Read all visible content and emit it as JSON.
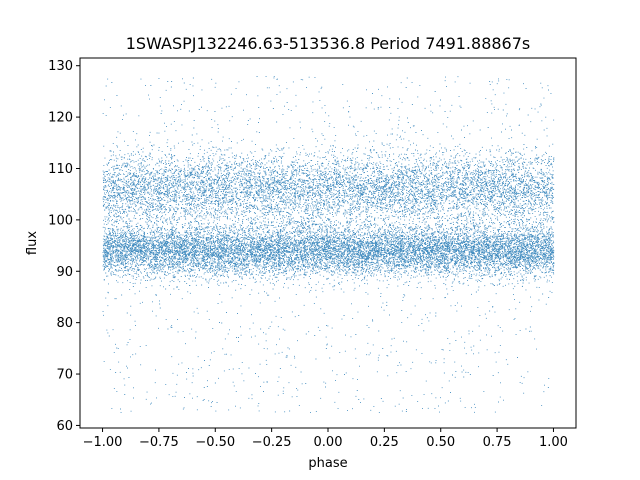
{
  "chart_data": {
    "type": "scatter",
    "title": "1SWASPJ132246.63-513536.8 Period 7491.88867s",
    "xlabel": "phase",
    "ylabel": "flux",
    "xlim": [
      -1.1,
      1.1
    ],
    "ylim": [
      59.5,
      131.5
    ],
    "xticks": [
      -1.0,
      -0.75,
      -0.5,
      -0.25,
      0.0,
      0.25,
      0.5,
      0.75,
      1.0
    ],
    "xtick_labels": [
      "−1.00",
      "−0.75",
      "−0.50",
      "−0.25",
      "0.00",
      "0.25",
      "0.50",
      "0.75",
      "1.00"
    ],
    "yticks": [
      60,
      70,
      80,
      90,
      100,
      110,
      120,
      130
    ],
    "ytick_labels": [
      "60",
      "70",
      "80",
      "90",
      "100",
      "110",
      "120",
      "130"
    ],
    "grid": false,
    "legend": "none",
    "marker_color": "#1f77b4",
    "series": [
      {
        "x_range": [
          -1.0,
          1.0
        ],
        "dense_band_center": 94,
        "dense_band_spread": 2.5,
        "secondary_band_center": 106,
        "secondary_band_spread": 3.5,
        "sparse_range": [
          62.5,
          128
        ]
      }
    ]
  }
}
